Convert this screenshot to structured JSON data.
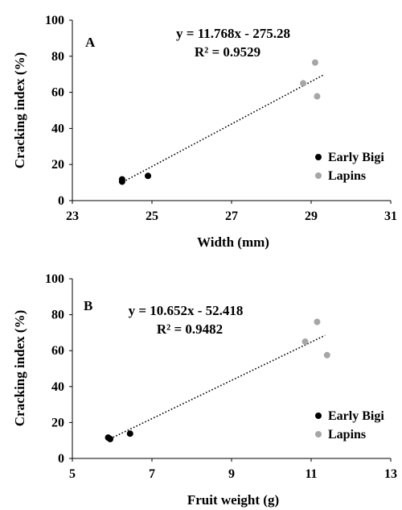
{
  "chart_data": [
    {
      "type": "scatter",
      "panel_label": "A",
      "xlabel": "Width (mm)",
      "ylabel": "Cracking index (%)",
      "xlim": [
        23,
        31
      ],
      "ylim": [
        0,
        100
      ],
      "xticks": [
        23,
        25,
        27,
        29,
        31
      ],
      "yticks": [
        0,
        20,
        40,
        60,
        80,
        100
      ],
      "grid": false,
      "legend_position": "bottom-right",
      "trendline": {
        "equation": "y = 11.768x - 275.28",
        "r2": "R² = 0.9529",
        "slope": 11.768,
        "intercept": -275.28,
        "x_range": [
          24.2,
          29.3
        ],
        "style": "dotted"
      },
      "series": [
        {
          "name": "Early Bigi",
          "color": "#000000",
          "points": [
            [
              24.25,
              10.5
            ],
            [
              24.25,
              11.8
            ],
            [
              24.9,
              13.7
            ]
          ]
        },
        {
          "name": "Lapins",
          "color": "#a6a6a6",
          "points": [
            [
              28.8,
              65.0
            ],
            [
              29.1,
              76.5
            ],
            [
              29.15,
              57.8
            ]
          ]
        }
      ]
    },
    {
      "type": "scatter",
      "panel_label": "B",
      "xlabel": "Fruit weight (g)",
      "ylabel": "Cracking index (%)",
      "xlim": [
        5,
        13
      ],
      "ylim": [
        0,
        100
      ],
      "xticks": [
        5,
        7,
        9,
        11,
        13
      ],
      "yticks": [
        0,
        20,
        40,
        60,
        80,
        100
      ],
      "grid": false,
      "legend_position": "bottom-right",
      "trendline": {
        "equation": "y = 10.652x - 52.418",
        "r2": "R² = 0.9482",
        "slope": 10.652,
        "intercept": -52.418,
        "x_range": [
          5.95,
          11.35
        ],
        "style": "dotted"
      },
      "series": [
        {
          "name": "Early Bigi",
          "color": "#000000",
          "points": [
            [
              5.9,
              11.6
            ],
            [
              5.95,
              10.8
            ],
            [
              6.45,
              13.8
            ]
          ]
        },
        {
          "name": "Lapins",
          "color": "#a6a6a6",
          "points": [
            [
              10.85,
              65.0
            ],
            [
              11.15,
              76.0
            ],
            [
              11.4,
              57.5
            ]
          ]
        }
      ]
    }
  ]
}
